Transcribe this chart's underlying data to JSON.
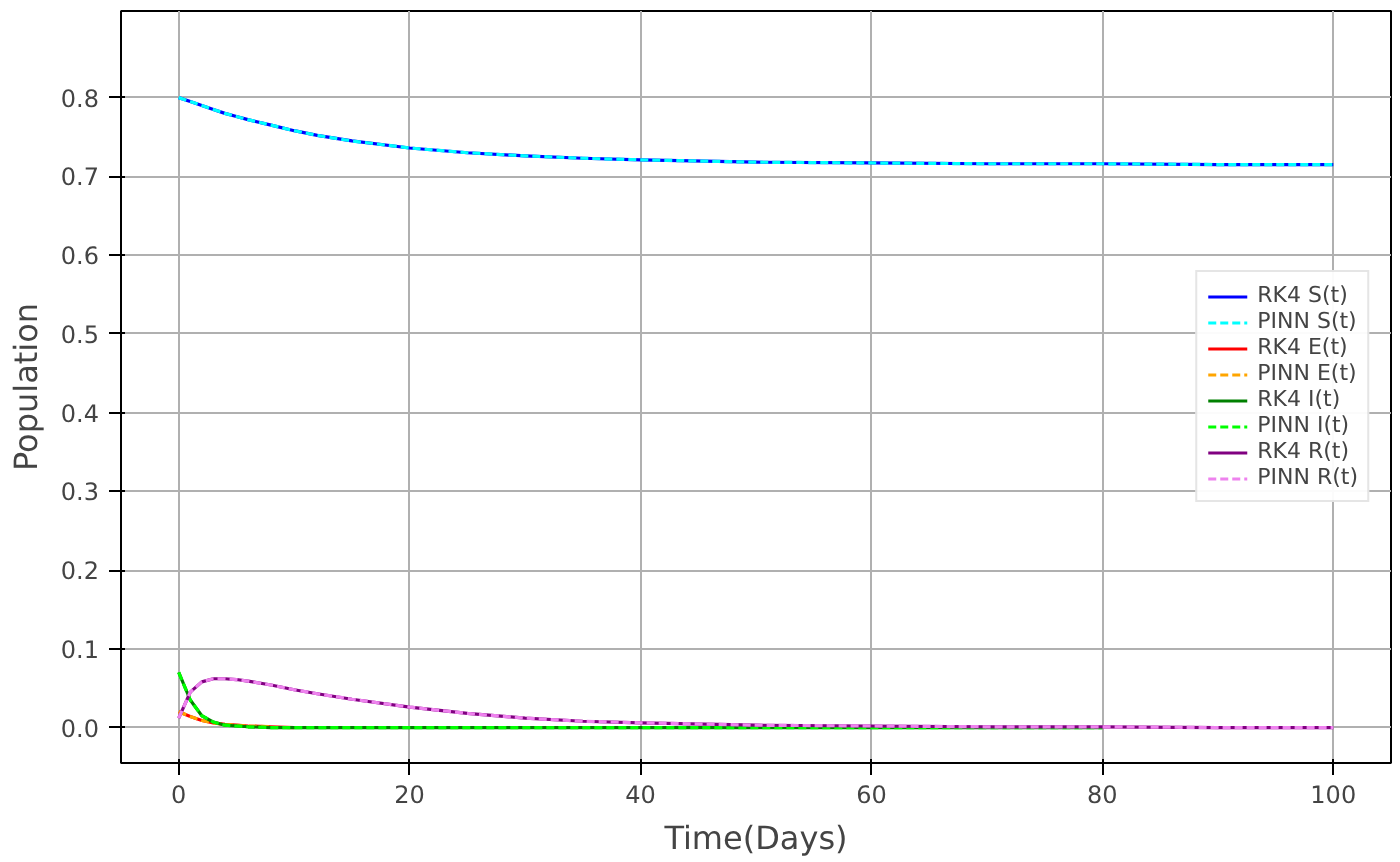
{
  "chart_data": {
    "type": "line",
    "xlabel": "Time(Days)",
    "ylabel": "Population",
    "x": [
      0,
      1,
      2,
      3,
      4,
      5,
      6,
      8,
      10,
      12,
      15,
      20,
      25,
      30,
      35,
      40,
      50,
      60,
      70,
      80,
      90,
      100
    ],
    "xlim": [
      -5,
      105
    ],
    "ylim": [
      -0.045,
      0.91
    ],
    "xticks": [
      0,
      20,
      40,
      60,
      80,
      100
    ],
    "yticks": [
      {
        "value": 0,
        "label": "0.0"
      },
      0.1,
      0.2,
      0.3,
      0.4,
      0.5,
      0.6,
      0.7,
      0.8
    ],
    "grid": true,
    "legend": "right",
    "marker": "none",
    "series": [
      {
        "name": "RK4 S(t)",
        "color": "#0000ff",
        "line_style": "solid",
        "values": [
          0.8,
          0.795,
          0.79,
          0.785,
          0.78,
          0.776,
          0.772,
          0.765,
          0.758,
          0.752,
          0.745,
          0.736,
          0.73,
          0.726,
          0.723,
          0.721,
          0.718,
          0.717,
          0.716,
          0.716,
          0.715,
          0.715
        ]
      },
      {
        "name": "PINN S(t)",
        "color": "#00ffff",
        "line_style": "dashed",
        "values": [
          0.8,
          0.795,
          0.79,
          0.785,
          0.78,
          0.776,
          0.772,
          0.765,
          0.758,
          0.752,
          0.745,
          0.736,
          0.73,
          0.726,
          0.723,
          0.721,
          0.718,
          0.717,
          0.716,
          0.716,
          0.715,
          0.715
        ]
      },
      {
        "name": "RK4 E(t)",
        "color": "#ff0000",
        "line_style": "solid",
        "values": [
          0.02,
          0.014,
          0.009,
          0.006,
          0.004,
          0.003,
          0.002,
          0.001,
          0,
          null,
          null,
          null,
          null,
          null,
          null,
          null,
          null,
          null,
          null,
          null,
          null,
          null
        ]
      },
      {
        "name": "PINN E(t)",
        "color": "#ffa500",
        "line_style": "dashed",
        "values": [
          0.02,
          0.014,
          0.009,
          0.006,
          0.004,
          0.003,
          0.002,
          0.001,
          null,
          null,
          null,
          null,
          null,
          null,
          null,
          null,
          null,
          null,
          null,
          null,
          null,
          null
        ]
      },
      {
        "name": "RK4 I(t)",
        "color": "#008000",
        "line_style": "solid",
        "values": [
          0.07,
          0.035,
          0.015,
          0.007,
          0.003,
          0.002,
          0.001,
          0,
          0,
          0,
          0,
          0,
          0,
          0,
          0,
          0,
          0,
          0,
          0,
          0,
          null,
          null
        ]
      },
      {
        "name": "PINN I(t)",
        "color": "#00ff00",
        "line_style": "dashed",
        "values": [
          0.07,
          0.035,
          0.015,
          0.007,
          0.003,
          0.002,
          0.001,
          0,
          0,
          0,
          0,
          0,
          0,
          0,
          0,
          0,
          0,
          0,
          0,
          0,
          null,
          null
        ]
      },
      {
        "name": "RK4 R(t)",
        "color": "#800080",
        "line_style": "solid",
        "values": [
          0.012,
          0.045,
          0.058,
          0.062,
          0.062,
          0.061,
          0.059,
          0.054,
          0.048,
          0.043,
          0.036,
          0.026,
          0.018,
          0.012,
          0.008,
          0.006,
          0.003,
          0.002,
          0.001,
          0.001,
          0,
          0
        ]
      },
      {
        "name": "PINN R(t)",
        "color": "#ee82ee",
        "line_style": "dashed",
        "values": [
          0.012,
          0.045,
          0.058,
          0.062,
          0.062,
          0.061,
          0.059,
          0.054,
          0.048,
          0.043,
          0.036,
          0.026,
          0.018,
          0.012,
          0.008,
          0.006,
          0.003,
          0.002,
          0.001,
          0.001,
          0,
          0
        ]
      }
    ]
  }
}
